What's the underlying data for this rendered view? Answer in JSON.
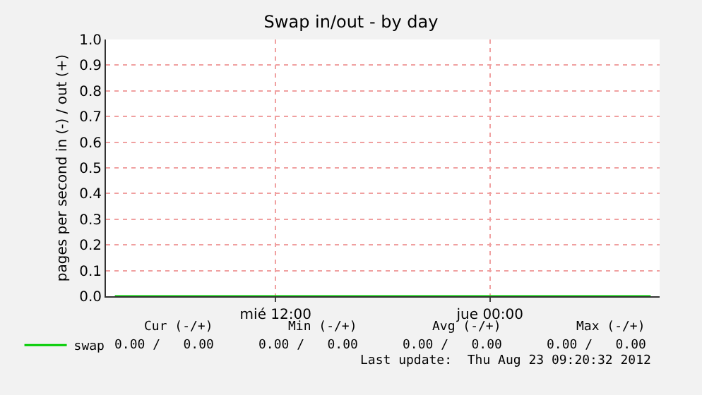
{
  "chart_data": {
    "type": "line",
    "title": "Swap in/out - by day",
    "ylabel": "pages per second in (-) / out (+)",
    "categories": [
      null,
      null,
      null,
      null,
      null,
      null,
      null,
      null,
      null,
      "mié 12:00",
      null,
      null,
      null,
      null,
      null,
      null,
      null,
      null,
      null,
      null,
      null,
      "jue 00:00",
      null,
      null,
      null,
      null,
      null,
      null,
      null,
      null,
      null
    ],
    "series": [
      {
        "name": "swap",
        "color": "#00cc00",
        "values": [
          0,
          0,
          0,
          0,
          0,
          0,
          0,
          0,
          0,
          0,
          0,
          0,
          0,
          0,
          0,
          0,
          0,
          0,
          0,
          0,
          0,
          0,
          0,
          0,
          0,
          0,
          0,
          0,
          0,
          0,
          0
        ]
      }
    ],
    "ylim": [
      0,
      1
    ],
    "yticks": [
      {
        "value": 0,
        "label": "0.0"
      },
      {
        "value": 0.1,
        "label": "0.1"
      },
      {
        "value": 0.2,
        "label": "0.2"
      },
      {
        "value": 0.3,
        "label": "0.3"
      },
      {
        "value": 0.4,
        "label": "0.4"
      },
      {
        "value": 0.5,
        "label": "0.5"
      },
      {
        "value": 0.6,
        "label": "0.6"
      },
      {
        "value": 0.7,
        "label": "0.7"
      },
      {
        "value": 0.8,
        "label": "0.8"
      },
      {
        "value": 0.9,
        "label": "0.9"
      },
      {
        "value": 1,
        "label": "1.0"
      }
    ],
    "grid": true,
    "legend": "bottom left",
    "marker": "none",
    "line_style": "solid",
    "annotations": [
      "Cur (-/+)",
      "Min (-/+)",
      "Avg (-/+)",
      "Max (-/+)",
      "0.00 /   0.00",
      "0.00 /   0.00",
      "0.00 /   0.00",
      "0.00 /   0.00",
      "Last update:  Thu Aug 23 09:20:32 2012"
    ]
  }
}
